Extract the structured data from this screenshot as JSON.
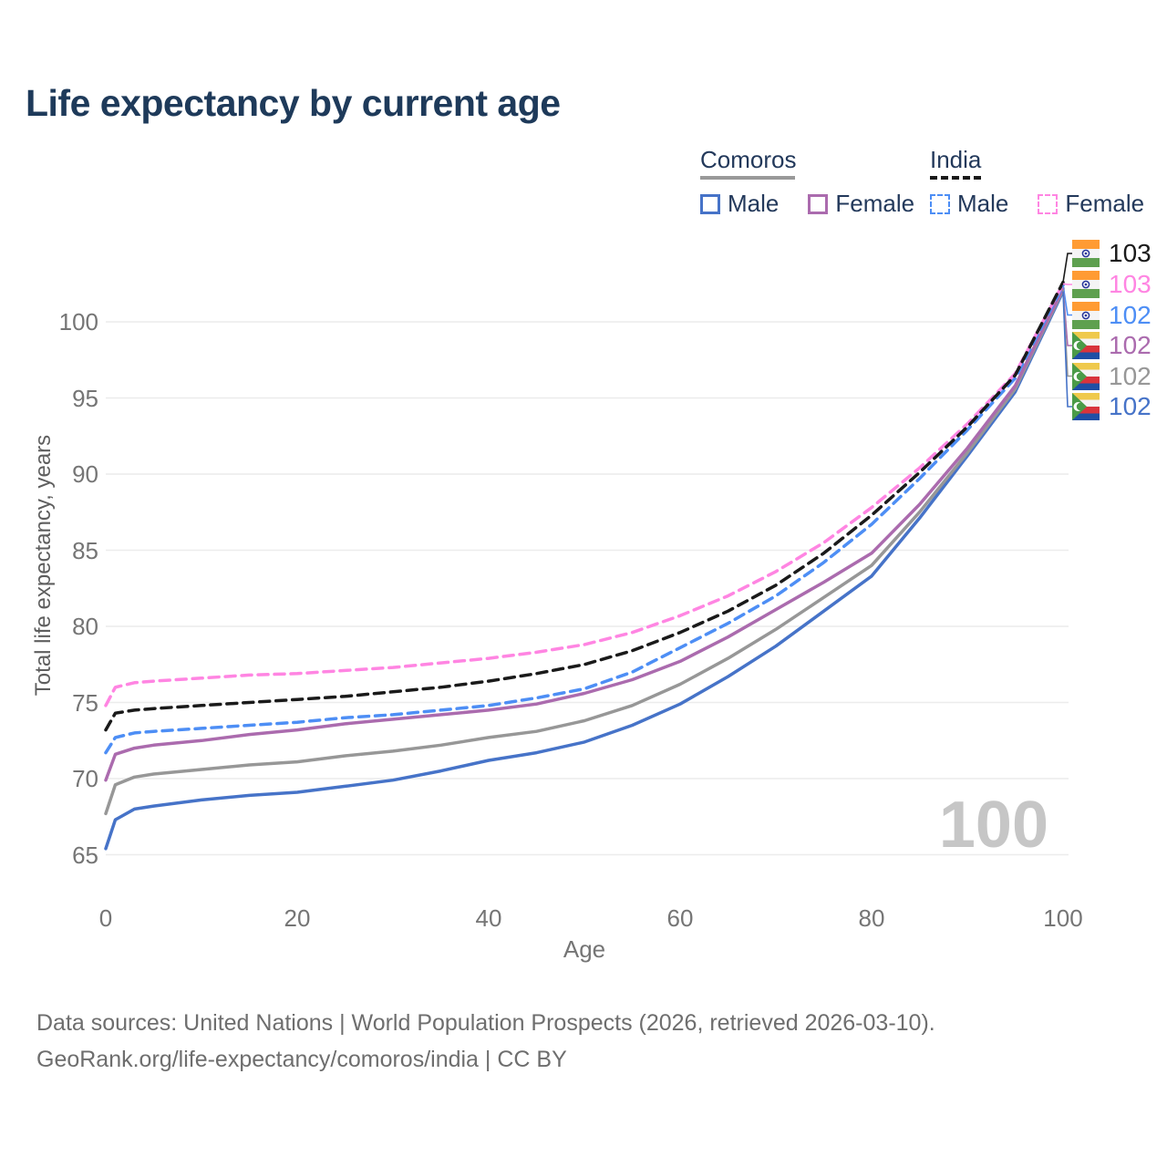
{
  "title": "Life expectancy by current age",
  "watermark": "100",
  "legend": {
    "groups": [
      {
        "name": "Comoros",
        "style": "solid",
        "items": [
          {
            "label": "Male",
            "color": "#4673c8"
          },
          {
            "label": "Female",
            "color": "#ab6bae"
          }
        ]
      },
      {
        "name": "India",
        "style": "dashed",
        "items": [
          {
            "label": "Male",
            "color": "#4d8ef5"
          },
          {
            "label": "Female",
            "color": "#ff85e2"
          }
        ]
      }
    ]
  },
  "footer": {
    "line1": "Data sources: United Nations | World Population Prospects (2026, retrieved 2026-03-10).",
    "line2": "GeoRank.org/life-expectancy/comoros/india | CC BY"
  },
  "chart_data": {
    "type": "line",
    "title": "Life expectancy by current age",
    "xlabel": "Age",
    "ylabel": "Total life expectancy, years",
    "xlim": [
      0,
      100
    ],
    "ylim": [
      63,
      103.5
    ],
    "xticks": [
      0,
      20,
      40,
      60,
      80,
      100
    ],
    "yticks": [
      65,
      70,
      75,
      80,
      85,
      90,
      95,
      100
    ],
    "grid": "horizontal",
    "legend_position": "top-right",
    "x": [
      0,
      1,
      3,
      5,
      10,
      15,
      20,
      25,
      30,
      35,
      40,
      45,
      50,
      55,
      60,
      65,
      70,
      75,
      80,
      85,
      90,
      95,
      100
    ],
    "series": [
      {
        "name": "India Both sexes",
        "country": "India",
        "sex": "both",
        "flag": "india",
        "dash": true,
        "color": "#1a1a1a",
        "end_label": "103",
        "values": [
          73.2,
          74.3,
          74.5,
          74.6,
          74.8,
          75.0,
          75.2,
          75.4,
          75.7,
          76.0,
          76.4,
          76.9,
          77.5,
          78.4,
          79.6,
          81.0,
          82.7,
          84.8,
          87.3,
          90.1,
          93.1,
          96.5,
          102.6
        ]
      },
      {
        "name": "India Female",
        "country": "India",
        "sex": "female",
        "flag": "india",
        "dash": true,
        "color": "#ff85e2",
        "end_label": "103",
        "values": [
          74.8,
          76.0,
          76.3,
          76.4,
          76.6,
          76.8,
          76.9,
          77.1,
          77.3,
          77.6,
          77.9,
          78.3,
          78.8,
          79.6,
          80.7,
          82.0,
          83.6,
          85.5,
          87.8,
          90.4,
          93.3,
          96.6,
          102.5
        ]
      },
      {
        "name": "India Male",
        "country": "India",
        "sex": "male",
        "flag": "india",
        "dash": true,
        "color": "#4d8ef5",
        "end_label": "102",
        "values": [
          71.7,
          72.7,
          73.0,
          73.1,
          73.3,
          73.5,
          73.7,
          74.0,
          74.2,
          74.5,
          74.8,
          75.3,
          75.9,
          77.0,
          78.6,
          80.2,
          82.0,
          84.2,
          86.7,
          89.7,
          92.9,
          96.3,
          102.4
        ]
      },
      {
        "name": "Comoros Female",
        "country": "Comoros",
        "sex": "female",
        "flag": "comoros",
        "dash": false,
        "color": "#ab6bae",
        "end_label": "102",
        "values": [
          69.9,
          71.6,
          72.0,
          72.2,
          72.5,
          72.9,
          73.2,
          73.6,
          73.9,
          74.2,
          74.5,
          74.9,
          75.6,
          76.5,
          77.7,
          79.3,
          81.1,
          82.9,
          84.8,
          88.0,
          91.7,
          95.8,
          102.2
        ]
      },
      {
        "name": "Comoros Both sexes",
        "country": "Comoros",
        "sex": "both",
        "flag": "comoros",
        "dash": false,
        "color": "#979797",
        "end_label": "102",
        "values": [
          67.7,
          69.6,
          70.1,
          70.3,
          70.6,
          70.9,
          71.1,
          71.5,
          71.8,
          72.2,
          72.7,
          73.1,
          73.8,
          74.8,
          76.2,
          77.9,
          79.8,
          81.9,
          84.0,
          87.5,
          91.4,
          95.6,
          102.1
        ]
      },
      {
        "name": "Comoros Male",
        "country": "Comoros",
        "sex": "male",
        "flag": "comoros",
        "dash": false,
        "color": "#4673c8",
        "end_label": "102",
        "values": [
          65.4,
          67.3,
          68.0,
          68.2,
          68.6,
          68.9,
          69.1,
          69.5,
          69.9,
          70.5,
          71.2,
          71.7,
          72.4,
          73.5,
          74.9,
          76.7,
          78.7,
          81.0,
          83.3,
          87.1,
          91.2,
          95.4,
          102.0
        ]
      }
    ]
  }
}
